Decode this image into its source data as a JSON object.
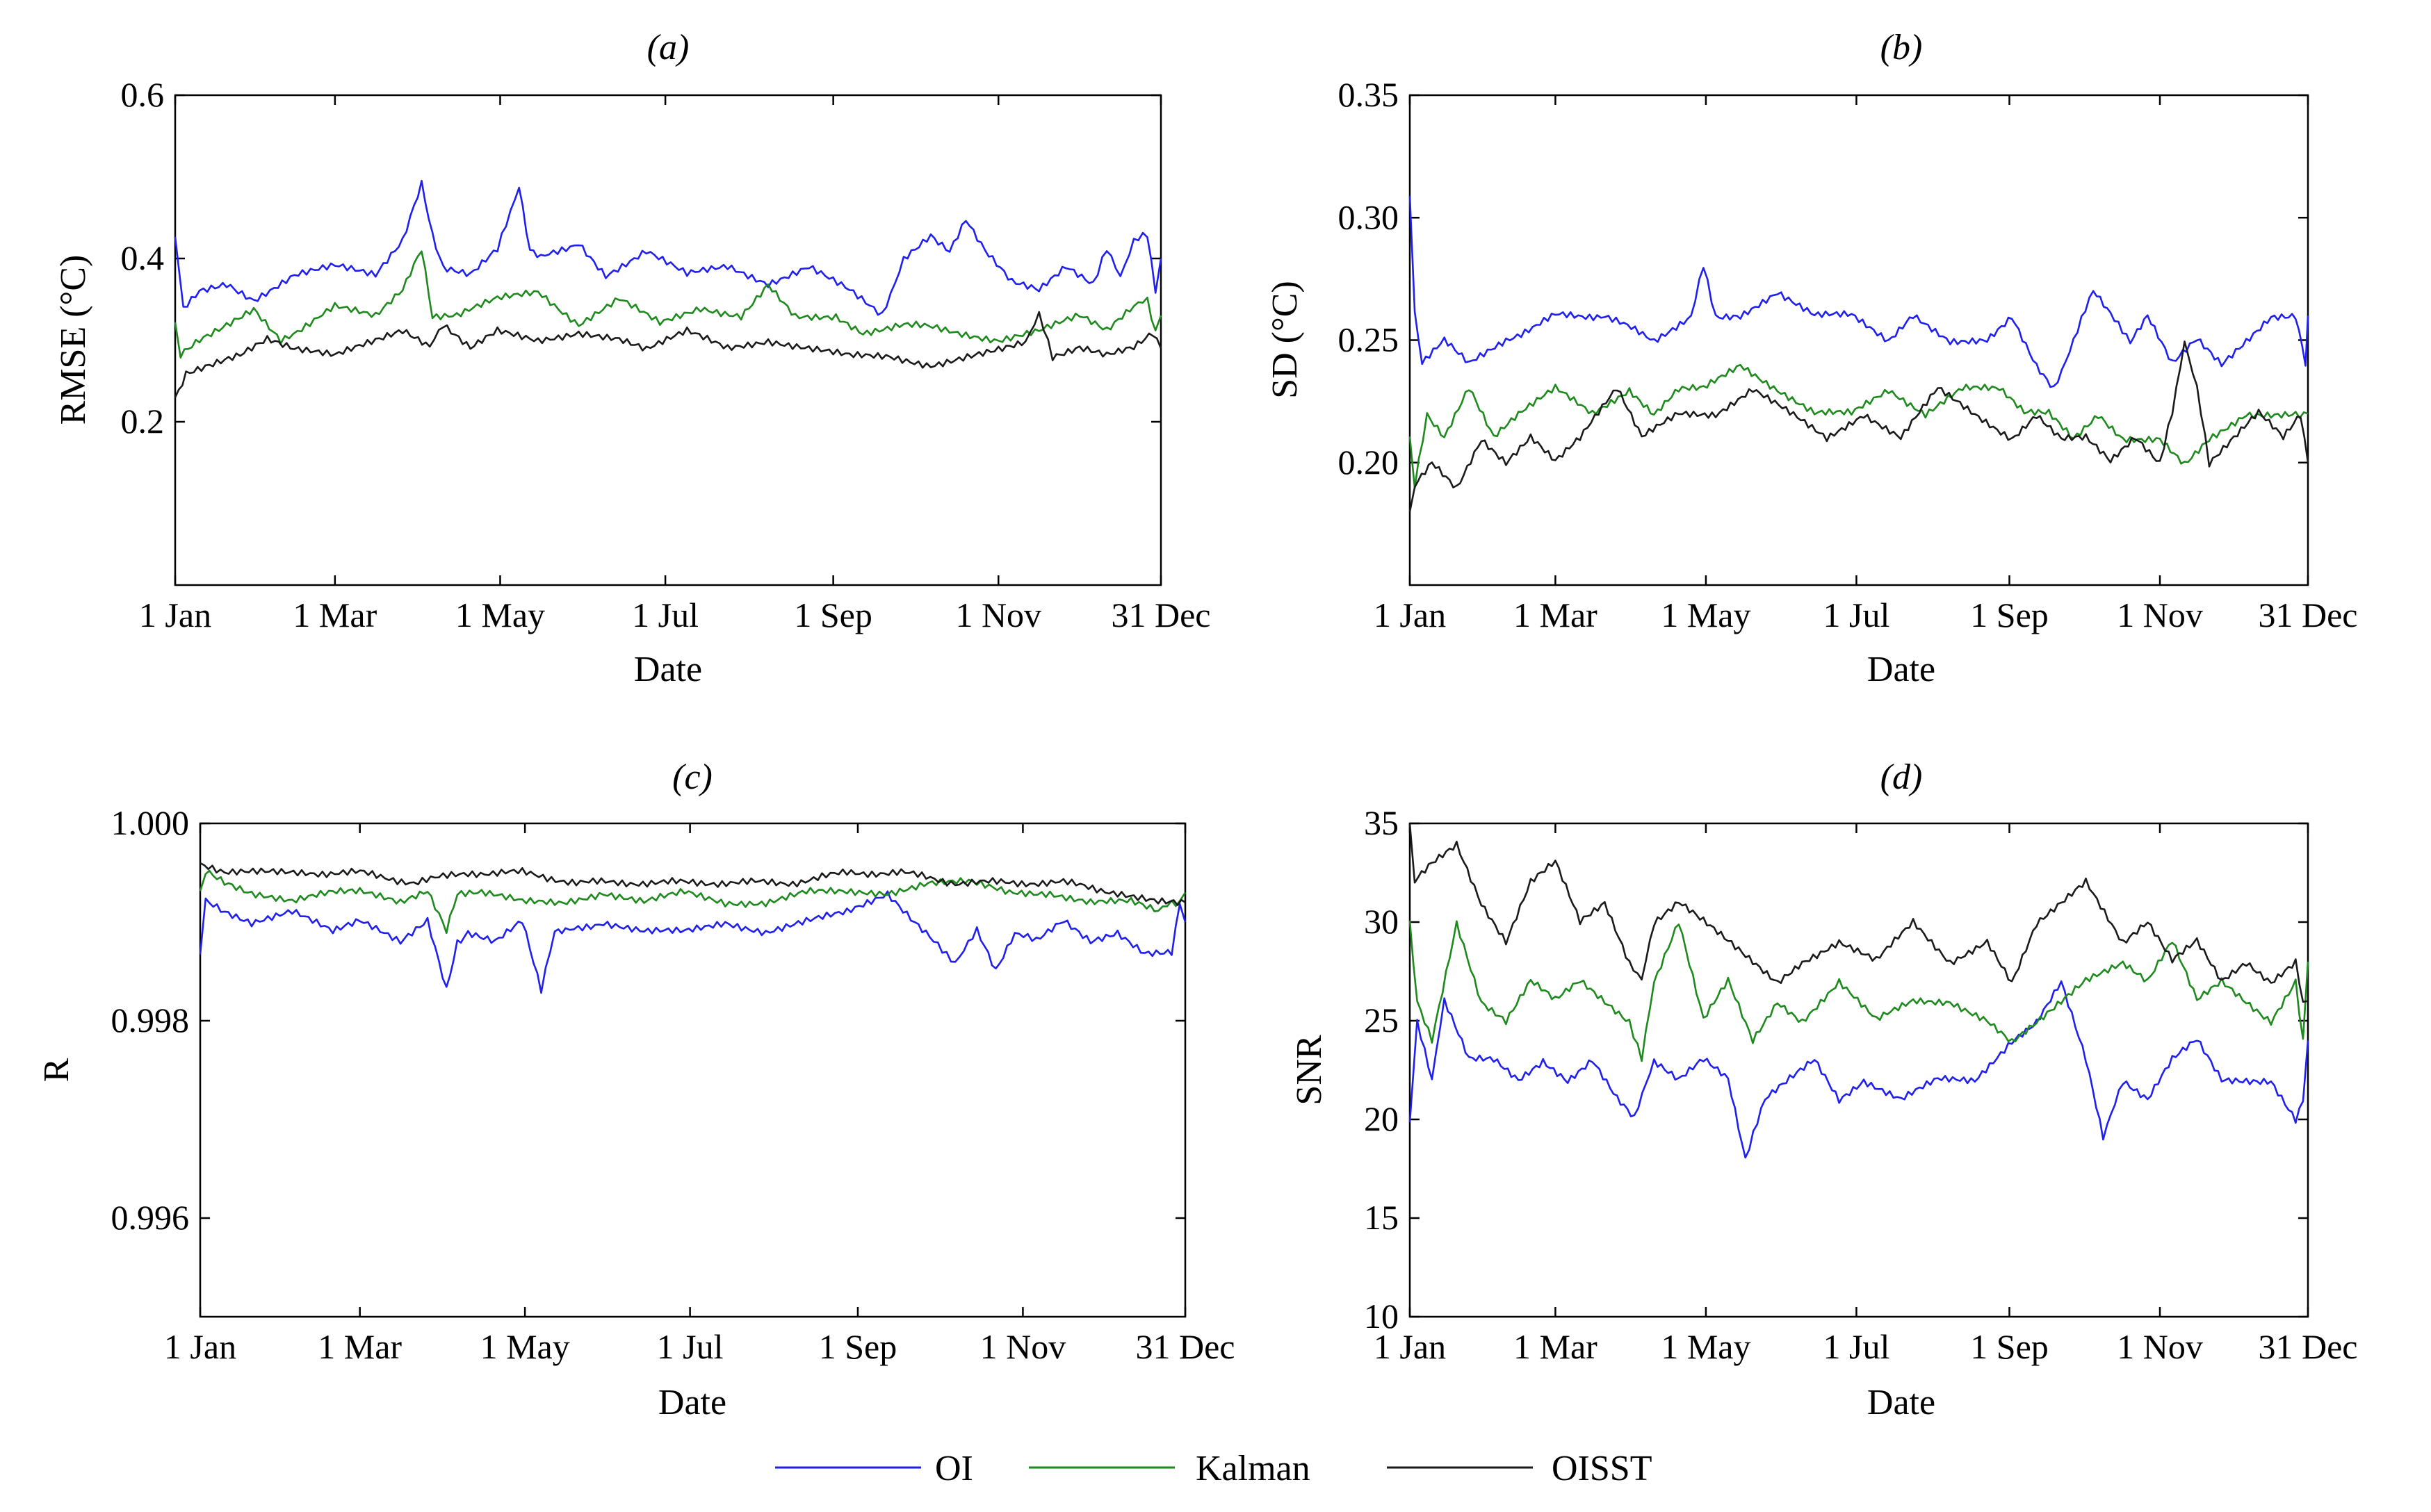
{
  "figure": {
    "legend": [
      {
        "label": "OI",
        "color": "#1f1fef"
      },
      {
        "label": "Kalman",
        "color": "#1e8a1e"
      },
      {
        "label": "OISST",
        "color": "#1a1a1a"
      }
    ]
  },
  "chart_data": [
    {
      "id": "a",
      "type": "line",
      "title": "(a)",
      "xlabel": "Date",
      "ylabel": "RMSE (°C)",
      "xlim": [
        1,
        365
      ],
      "ylim": [
        0.0,
        0.6
      ],
      "yticks": [
        0.2,
        0.4,
        0.6
      ],
      "ytick_labels": [
        "0.2",
        "0.4",
        "0.6"
      ],
      "xticks": [
        1,
        60,
        121,
        182,
        244,
        305,
        365
      ],
      "xtick_labels": [
        "1 Jan",
        "1 Mar",
        "1 May",
        "1 Jul",
        "1 Sep",
        "1 Nov",
        "31 Dec"
      ],
      "series": [
        {
          "name": "OI",
          "color": "#1f1fef",
          "x": [
            1,
            4,
            10,
            20,
            30,
            45,
            60,
            75,
            85,
            92,
            96,
            100,
            110,
            120,
            128,
            132,
            136,
            150,
            160,
            175,
            190,
            205,
            220,
            235,
            250,
            262,
            270,
            280,
            287,
            293,
            300,
            310,
            320,
            330,
            340,
            345,
            350,
            355,
            360,
            363,
            365
          ],
          "y": [
            0.43,
            0.34,
            0.36,
            0.37,
            0.35,
            0.38,
            0.39,
            0.38,
            0.42,
            0.49,
            0.43,
            0.39,
            0.38,
            0.41,
            0.49,
            0.41,
            0.4,
            0.42,
            0.38,
            0.41,
            0.38,
            0.39,
            0.37,
            0.39,
            0.36,
            0.33,
            0.4,
            0.43,
            0.41,
            0.45,
            0.41,
            0.37,
            0.36,
            0.39,
            0.37,
            0.41,
            0.38,
            0.42,
            0.43,
            0.36,
            0.4
          ]
        },
        {
          "name": "Kalman",
          "color": "#1e8a1e",
          "x": [
            1,
            3,
            10,
            20,
            30,
            40,
            60,
            75,
            85,
            92,
            96,
            105,
            120,
            135,
            150,
            165,
            180,
            195,
            210,
            220,
            230,
            245,
            255,
            270,
            290,
            305,
            320,
            335,
            345,
            355,
            360,
            363,
            365
          ],
          "y": [
            0.32,
            0.28,
            0.3,
            0.32,
            0.34,
            0.3,
            0.34,
            0.33,
            0.36,
            0.41,
            0.33,
            0.33,
            0.35,
            0.36,
            0.32,
            0.35,
            0.32,
            0.34,
            0.33,
            0.37,
            0.33,
            0.33,
            0.31,
            0.32,
            0.31,
            0.3,
            0.31,
            0.33,
            0.31,
            0.34,
            0.35,
            0.31,
            0.33
          ]
        },
        {
          "name": "OISST",
          "color": "#1a1a1a",
          "x": [
            1,
            5,
            15,
            25,
            35,
            45,
            60,
            75,
            85,
            95,
            100,
            110,
            120,
            135,
            150,
            165,
            175,
            190,
            205,
            220,
            235,
            250,
            265,
            280,
            295,
            305,
            315,
            320,
            325,
            335,
            345,
            355,
            362,
            365
          ],
          "y": [
            0.23,
            0.26,
            0.27,
            0.28,
            0.3,
            0.29,
            0.28,
            0.3,
            0.31,
            0.29,
            0.32,
            0.29,
            0.31,
            0.3,
            0.31,
            0.3,
            0.29,
            0.31,
            0.29,
            0.3,
            0.29,
            0.28,
            0.28,
            0.27,
            0.28,
            0.29,
            0.3,
            0.33,
            0.28,
            0.29,
            0.28,
            0.29,
            0.31,
            0.29
          ]
        }
      ]
    },
    {
      "id": "b",
      "type": "line",
      "title": "(b)",
      "xlabel": "Date",
      "ylabel": "SD (°C)",
      "xlim": [
        1,
        365
      ],
      "ylim": [
        0.15,
        0.35
      ],
      "yticks": [
        0.2,
        0.25,
        0.3,
        0.35
      ],
      "ytick_labels": [
        "0.20",
        "0.25",
        "0.30",
        "0.35"
      ],
      "xticks": [
        1,
        60,
        121,
        182,
        244,
        305,
        365
      ],
      "xtick_labels": [
        "1 Jan",
        "1 Mar",
        "1 May",
        "1 Jul",
        "1 Sep",
        "1 Nov",
        "31 Dec"
      ],
      "series": [
        {
          "name": "OI",
          "color": "#1f1fef",
          "x": [
            1,
            3,
            6,
            15,
            25,
            40,
            60,
            80,
            100,
            115,
            120,
            125,
            135,
            150,
            165,
            180,
            195,
            205,
            220,
            235,
            245,
            255,
            262,
            270,
            278,
            285,
            293,
            300,
            310,
            320,
            330,
            340,
            350,
            360,
            364,
            365
          ],
          "y": [
            0.31,
            0.26,
            0.24,
            0.25,
            0.24,
            0.25,
            0.26,
            0.26,
            0.25,
            0.26,
            0.28,
            0.26,
            0.26,
            0.27,
            0.26,
            0.26,
            0.25,
            0.26,
            0.25,
            0.25,
            0.26,
            0.24,
            0.23,
            0.25,
            0.27,
            0.26,
            0.25,
            0.26,
            0.24,
            0.25,
            0.24,
            0.25,
            0.26,
            0.26,
            0.24,
            0.26
          ]
        },
        {
          "name": "Kalman",
          "color": "#1e8a1e",
          "x": [
            1,
            3,
            8,
            15,
            25,
            35,
            45,
            60,
            75,
            90,
            100,
            110,
            120,
            135,
            150,
            165,
            180,
            195,
            210,
            225,
            240,
            250,
            260,
            270,
            280,
            290,
            305,
            315,
            325,
            340,
            350,
            360,
            365
          ],
          "y": [
            0.21,
            0.19,
            0.22,
            0.21,
            0.23,
            0.21,
            0.22,
            0.23,
            0.22,
            0.23,
            0.22,
            0.23,
            0.23,
            0.24,
            0.23,
            0.22,
            0.22,
            0.23,
            0.22,
            0.23,
            0.23,
            0.22,
            0.22,
            0.21,
            0.22,
            0.21,
            0.21,
            0.2,
            0.21,
            0.22,
            0.22,
            0.22,
            0.22
          ]
        },
        {
          "name": "OISST",
          "color": "#1a1a1a",
          "x": [
            1,
            3,
            10,
            20,
            30,
            40,
            50,
            60,
            70,
            85,
            95,
            110,
            125,
            140,
            155,
            170,
            185,
            200,
            215,
            230,
            245,
            255,
            265,
            275,
            285,
            295,
            305,
            310,
            315,
            320,
            325,
            335,
            345,
            355,
            362,
            365
          ],
          "y": [
            0.18,
            0.19,
            0.2,
            0.19,
            0.21,
            0.2,
            0.21,
            0.2,
            0.21,
            0.23,
            0.21,
            0.22,
            0.22,
            0.23,
            0.22,
            0.21,
            0.22,
            0.21,
            0.23,
            0.22,
            0.21,
            0.22,
            0.21,
            0.21,
            0.2,
            0.21,
            0.2,
            0.22,
            0.25,
            0.23,
            0.2,
            0.21,
            0.22,
            0.21,
            0.22,
            0.2
          ]
        }
      ]
    },
    {
      "id": "c",
      "type": "line",
      "title": "(c)",
      "xlabel": "Date",
      "ylabel": "R",
      "xlim": [
        1,
        365
      ],
      "ylim": [
        0.995,
        1.0
      ],
      "yticks": [
        0.996,
        0.998,
        1.0
      ],
      "ytick_labels": [
        "0.996",
        "0.998",
        "1.000"
      ],
      "xticks": [
        1,
        60,
        121,
        182,
        244,
        305,
        365
      ],
      "xtick_labels": [
        "1 Jan",
        "1 Mar",
        "1 May",
        "1 Jul",
        "1 Sep",
        "1 Nov",
        "31 Dec"
      ],
      "series": [
        {
          "name": "OI",
          "color": "#1f1fef",
          "x": [
            1,
            3,
            10,
            20,
            35,
            50,
            60,
            75,
            85,
            92,
            96,
            100,
            110,
            120,
            127,
            132,
            136,
            150,
            165,
            180,
            195,
            210,
            225,
            240,
            255,
            265,
            272,
            280,
            288,
            295,
            302,
            310,
            320,
            330,
            340,
            350,
            360,
            363,
            365
          ],
          "y": [
            0.9987,
            0.9992,
            0.9991,
            0.999,
            0.9991,
            0.9989,
            0.999,
            0.9988,
            0.999,
            0.9983,
            0.9988,
            0.9989,
            0.9988,
            0.999,
            0.9983,
            0.9989,
            0.9989,
            0.999,
            0.9989,
            0.9989,
            0.999,
            0.9989,
            0.999,
            0.9991,
            0.9993,
            0.999,
            0.9988,
            0.9986,
            0.9989,
            0.9985,
            0.9989,
            0.9988,
            0.999,
            0.9988,
            0.9989,
            0.9987,
            0.9987,
            0.9992,
            0.999
          ]
        },
        {
          "name": "Kalman",
          "color": "#1e8a1e",
          "x": [
            1,
            3,
            10,
            20,
            35,
            50,
            60,
            75,
            85,
            92,
            96,
            105,
            120,
            135,
            150,
            165,
            180,
            195,
            210,
            225,
            240,
            255,
            270,
            285,
            300,
            315,
            330,
            345,
            355,
            360,
            363,
            365
          ],
          "y": [
            0.9993,
            0.9995,
            0.9994,
            0.9993,
            0.9992,
            0.9993,
            0.9993,
            0.9992,
            0.9993,
            0.9989,
            0.9993,
            0.9993,
            0.9992,
            0.9992,
            0.9993,
            0.9992,
            0.9993,
            0.9992,
            0.9992,
            0.9993,
            0.9993,
            0.9993,
            0.9994,
            0.9994,
            0.9993,
            0.9993,
            0.9992,
            0.9992,
            0.9991,
            0.9992,
            0.9992,
            0.9993
          ]
        },
        {
          "name": "OISST",
          "color": "#1a1a1a",
          "x": [
            1,
            10,
            25,
            40,
            60,
            80,
            100,
            120,
            140,
            160,
            180,
            200,
            220,
            240,
            260,
            280,
            300,
            320,
            340,
            355,
            365
          ],
          "y": [
            0.9996,
            0.9995,
            0.9995,
            0.9995,
            0.9995,
            0.9994,
            0.9995,
            0.9995,
            0.9994,
            0.9994,
            0.9994,
            0.9994,
            0.9994,
            0.9995,
            0.9995,
            0.9994,
            0.9994,
            0.9994,
            0.9993,
            0.9992,
            0.9992
          ]
        }
      ]
    },
    {
      "id": "d",
      "type": "line",
      "title": "(d)",
      "xlabel": "Date",
      "ylabel": "SNR",
      "xlim": [
        1,
        365
      ],
      "ylim": [
        10,
        35
      ],
      "yticks": [
        10,
        15,
        20,
        25,
        30,
        35
      ],
      "ytick_labels": [
        "10",
        "15",
        "20",
        "25",
        "30",
        "35"
      ],
      "xticks": [
        1,
        60,
        121,
        182,
        244,
        305,
        365
      ],
      "xtick_labels": [
        "1 Jan",
        "1 Mar",
        "1 May",
        "1 Jul",
        "1 Sep",
        "1 Nov",
        "31 Dec"
      ],
      "series": [
        {
          "name": "OI",
          "color": "#1f1fef",
          "x": [
            1,
            4,
            10,
            15,
            25,
            35,
            45,
            55,
            65,
            75,
            85,
            92,
            100,
            110,
            120,
            130,
            137,
            145,
            155,
            165,
            175,
            185,
            200,
            215,
            230,
            245,
            255,
            265,
            275,
            282,
            290,
            300,
            310,
            320,
            330,
            340,
            350,
            360,
            363,
            365
          ],
          "y": [
            20,
            25,
            22,
            26,
            23,
            23,
            22,
            23,
            22,
            23,
            21,
            20,
            23,
            22,
            23,
            22,
            18,
            21,
            22,
            23,
            21,
            22,
            21,
            22,
            22,
            24,
            25,
            27,
            23,
            19,
            22,
            21,
            23,
            24,
            22,
            22,
            22,
            20,
            21,
            24
          ]
        },
        {
          "name": "Kalman",
          "color": "#1e8a1e",
          "x": [
            1,
            4,
            10,
            20,
            30,
            40,
            50,
            60,
            70,
            80,
            90,
            95,
            100,
            110,
            120,
            130,
            140,
            150,
            160,
            175,
            190,
            205,
            220,
            235,
            245,
            255,
            265,
            275,
            290,
            300,
            310,
            320,
            330,
            340,
            350,
            360,
            363,
            365
          ],
          "y": [
            30,
            26,
            24,
            30,
            26,
            25,
            27,
            26,
            27,
            26,
            25,
            23,
            27,
            30,
            25,
            27,
            24,
            26,
            25,
            27,
            25,
            26,
            26,
            25,
            24,
            25,
            26,
            27,
            28,
            27,
            29,
            26,
            27,
            26,
            25,
            27,
            24,
            28
          ]
        },
        {
          "name": "OISST",
          "color": "#1a1a1a",
          "x": [
            1,
            3,
            10,
            20,
            30,
            40,
            50,
            60,
            70,
            80,
            90,
            95,
            100,
            110,
            120,
            130,
            140,
            150,
            160,
            175,
            190,
            205,
            220,
            235,
            245,
            255,
            265,
            275,
            290,
            300,
            310,
            320,
            330,
            340,
            350,
            360,
            363,
            365
          ],
          "y": [
            35,
            32,
            33,
            34,
            31,
            29,
            32,
            33,
            30,
            31,
            28,
            27,
            30,
            31,
            30,
            29,
            28,
            27,
            28,
            29,
            28,
            30,
            28,
            29,
            27,
            30,
            31,
            32,
            29,
            30,
            28,
            29,
            27,
            28,
            27,
            28,
            26,
            26
          ]
        }
      ]
    }
  ]
}
